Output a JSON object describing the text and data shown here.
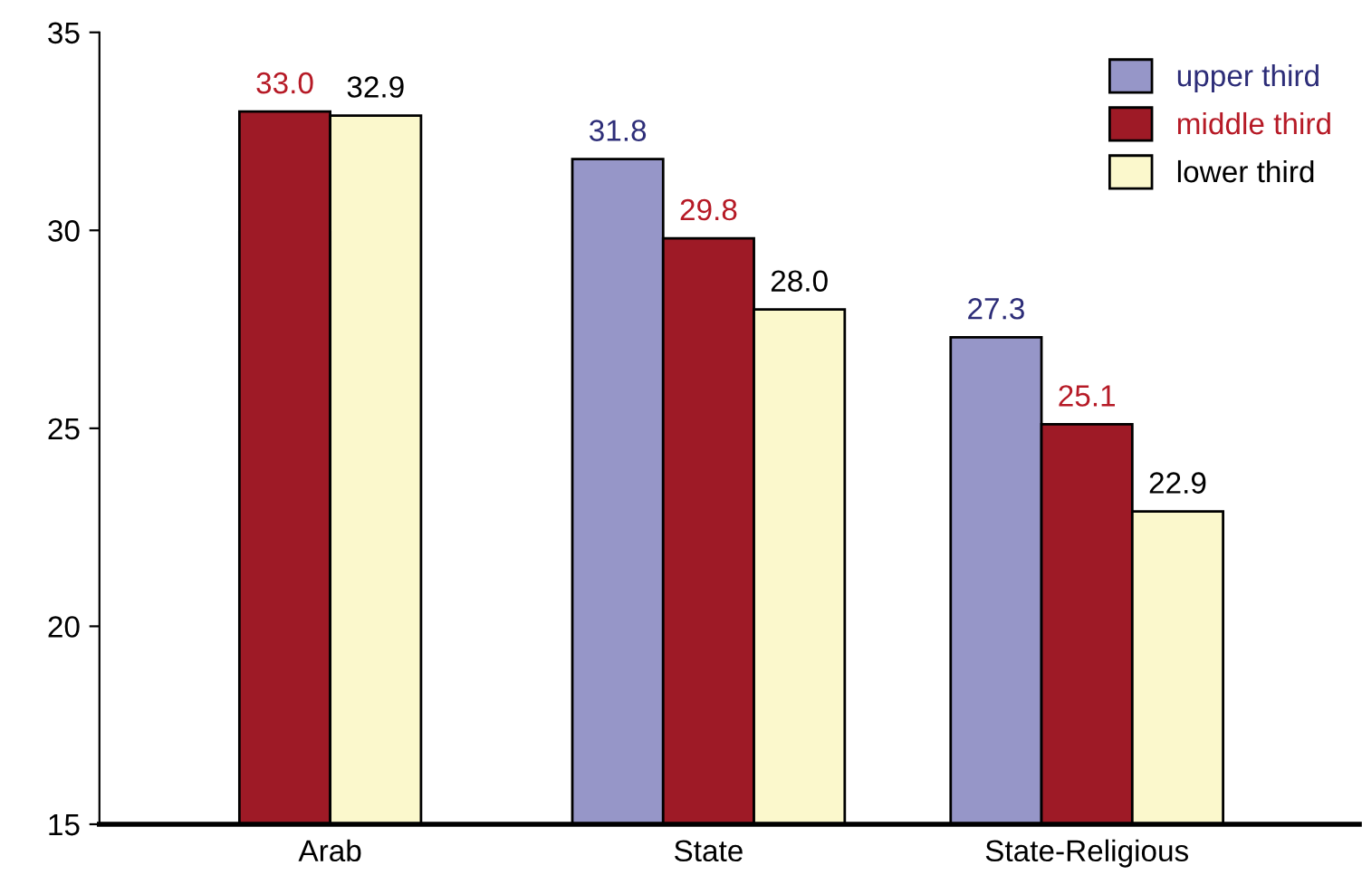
{
  "chart_data": {
    "type": "bar",
    "categories": [
      "Arab",
      "State",
      "State-Religious"
    ],
    "series": [
      {
        "name": "upper third",
        "color": "#9696c8",
        "values": [
          null,
          31.8,
          27.3
        ],
        "value_labels": [
          null,
          "31.8",
          "27.3"
        ]
      },
      {
        "name": "middle third",
        "color": "#9e1a26",
        "values": [
          33.0,
          29.8,
          25.1
        ],
        "value_labels": [
          "33.0",
          "29.8",
          "25.1"
        ]
      },
      {
        "name": "lower third",
        "color": "#fbf8cc",
        "values": [
          32.9,
          28.0,
          22.9
        ],
        "value_labels": [
          "32.9",
          "28.0",
          "22.9"
        ]
      }
    ],
    "ylim": [
      15,
      35
    ],
    "yticks": [
      15,
      20,
      25,
      30,
      35
    ],
    "legend": "top right",
    "grid": false
  }
}
